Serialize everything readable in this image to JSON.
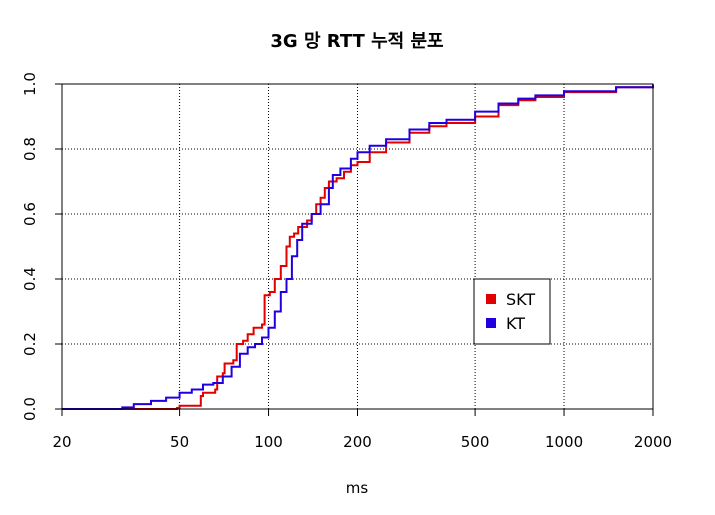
{
  "chart_data": {
    "type": "line",
    "title": "3G 망 RTT 누적 분포",
    "xlabel": "ms",
    "ylabel": "",
    "x_scale": "log",
    "xlim": [
      20,
      2000
    ],
    "ylim": [
      0,
      1
    ],
    "x_ticks": [
      20,
      50,
      100,
      200,
      500,
      1000,
      2000
    ],
    "x_tick_labels": [
      "20",
      "50",
      "100",
      "200",
      "500",
      "1000",
      "2000"
    ],
    "y_ticks": [
      0,
      0.2,
      0.4,
      0.6,
      0.8,
      1.0
    ],
    "y_tick_labels": [
      "0.0",
      "0.2",
      "0.4",
      "0.6",
      "0.8",
      "1.0"
    ],
    "grid": true,
    "legend_position": "right-middle",
    "series": [
      {
        "name": "SKT",
        "color": "#e00000",
        "points": [
          [
            20,
            0
          ],
          [
            45,
            0
          ],
          [
            49,
            0.003
          ],
          [
            50,
            0.01
          ],
          [
            58,
            0.01
          ],
          [
            59,
            0.04
          ],
          [
            60,
            0.05
          ],
          [
            66,
            0.06
          ],
          [
            67,
            0.1
          ],
          [
            70,
            0.11
          ],
          [
            71,
            0.14
          ],
          [
            76,
            0.15
          ],
          [
            78,
            0.2
          ],
          [
            82,
            0.21
          ],
          [
            85,
            0.23
          ],
          [
            89,
            0.25
          ],
          [
            95,
            0.26
          ],
          [
            97,
            0.35
          ],
          [
            101,
            0.36
          ],
          [
            105,
            0.4
          ],
          [
            110,
            0.44
          ],
          [
            115,
            0.5
          ],
          [
            118,
            0.53
          ],
          [
            122,
            0.54
          ],
          [
            126,
            0.56
          ],
          [
            135,
            0.58
          ],
          [
            140,
            0.6
          ],
          [
            145,
            0.63
          ],
          [
            150,
            0.65
          ],
          [
            155,
            0.68
          ],
          [
            160,
            0.7
          ],
          [
            170,
            0.71
          ],
          [
            180,
            0.73
          ],
          [
            190,
            0.75
          ],
          [
            200,
            0.76
          ],
          [
            220,
            0.79
          ],
          [
            250,
            0.82
          ],
          [
            300,
            0.85
          ],
          [
            350,
            0.87
          ],
          [
            400,
            0.88
          ],
          [
            500,
            0.9
          ],
          [
            600,
            0.935
          ],
          [
            700,
            0.95
          ],
          [
            800,
            0.96
          ],
          [
            1000,
            0.975
          ],
          [
            1500,
            0.99
          ],
          [
            2000,
            0.997
          ]
        ]
      },
      {
        "name": "KT",
        "color": "#2000e0",
        "points": [
          [
            20,
            0
          ],
          [
            30,
            0
          ],
          [
            32,
            0.005
          ],
          [
            35,
            0.015
          ],
          [
            40,
            0.025
          ],
          [
            45,
            0.035
          ],
          [
            50,
            0.05
          ],
          [
            55,
            0.06
          ],
          [
            60,
            0.075
          ],
          [
            65,
            0.08
          ],
          [
            70,
            0.1
          ],
          [
            75,
            0.13
          ],
          [
            80,
            0.17
          ],
          [
            85,
            0.19
          ],
          [
            90,
            0.2
          ],
          [
            95,
            0.22
          ],
          [
            100,
            0.25
          ],
          [
            105,
            0.3
          ],
          [
            110,
            0.36
          ],
          [
            115,
            0.4
          ],
          [
            120,
            0.47
          ],
          [
            125,
            0.52
          ],
          [
            130,
            0.57
          ],
          [
            140,
            0.6
          ],
          [
            150,
            0.63
          ],
          [
            160,
            0.68
          ],
          [
            165,
            0.72
          ],
          [
            175,
            0.74
          ],
          [
            190,
            0.77
          ],
          [
            200,
            0.79
          ],
          [
            220,
            0.81
          ],
          [
            250,
            0.83
          ],
          [
            300,
            0.86
          ],
          [
            350,
            0.88
          ],
          [
            400,
            0.89
          ],
          [
            500,
            0.915
          ],
          [
            600,
            0.94
          ],
          [
            700,
            0.955
          ],
          [
            800,
            0.965
          ],
          [
            1000,
            0.978
          ],
          [
            1500,
            0.99
          ],
          [
            2000,
            0.998
          ]
        ]
      }
    ]
  }
}
